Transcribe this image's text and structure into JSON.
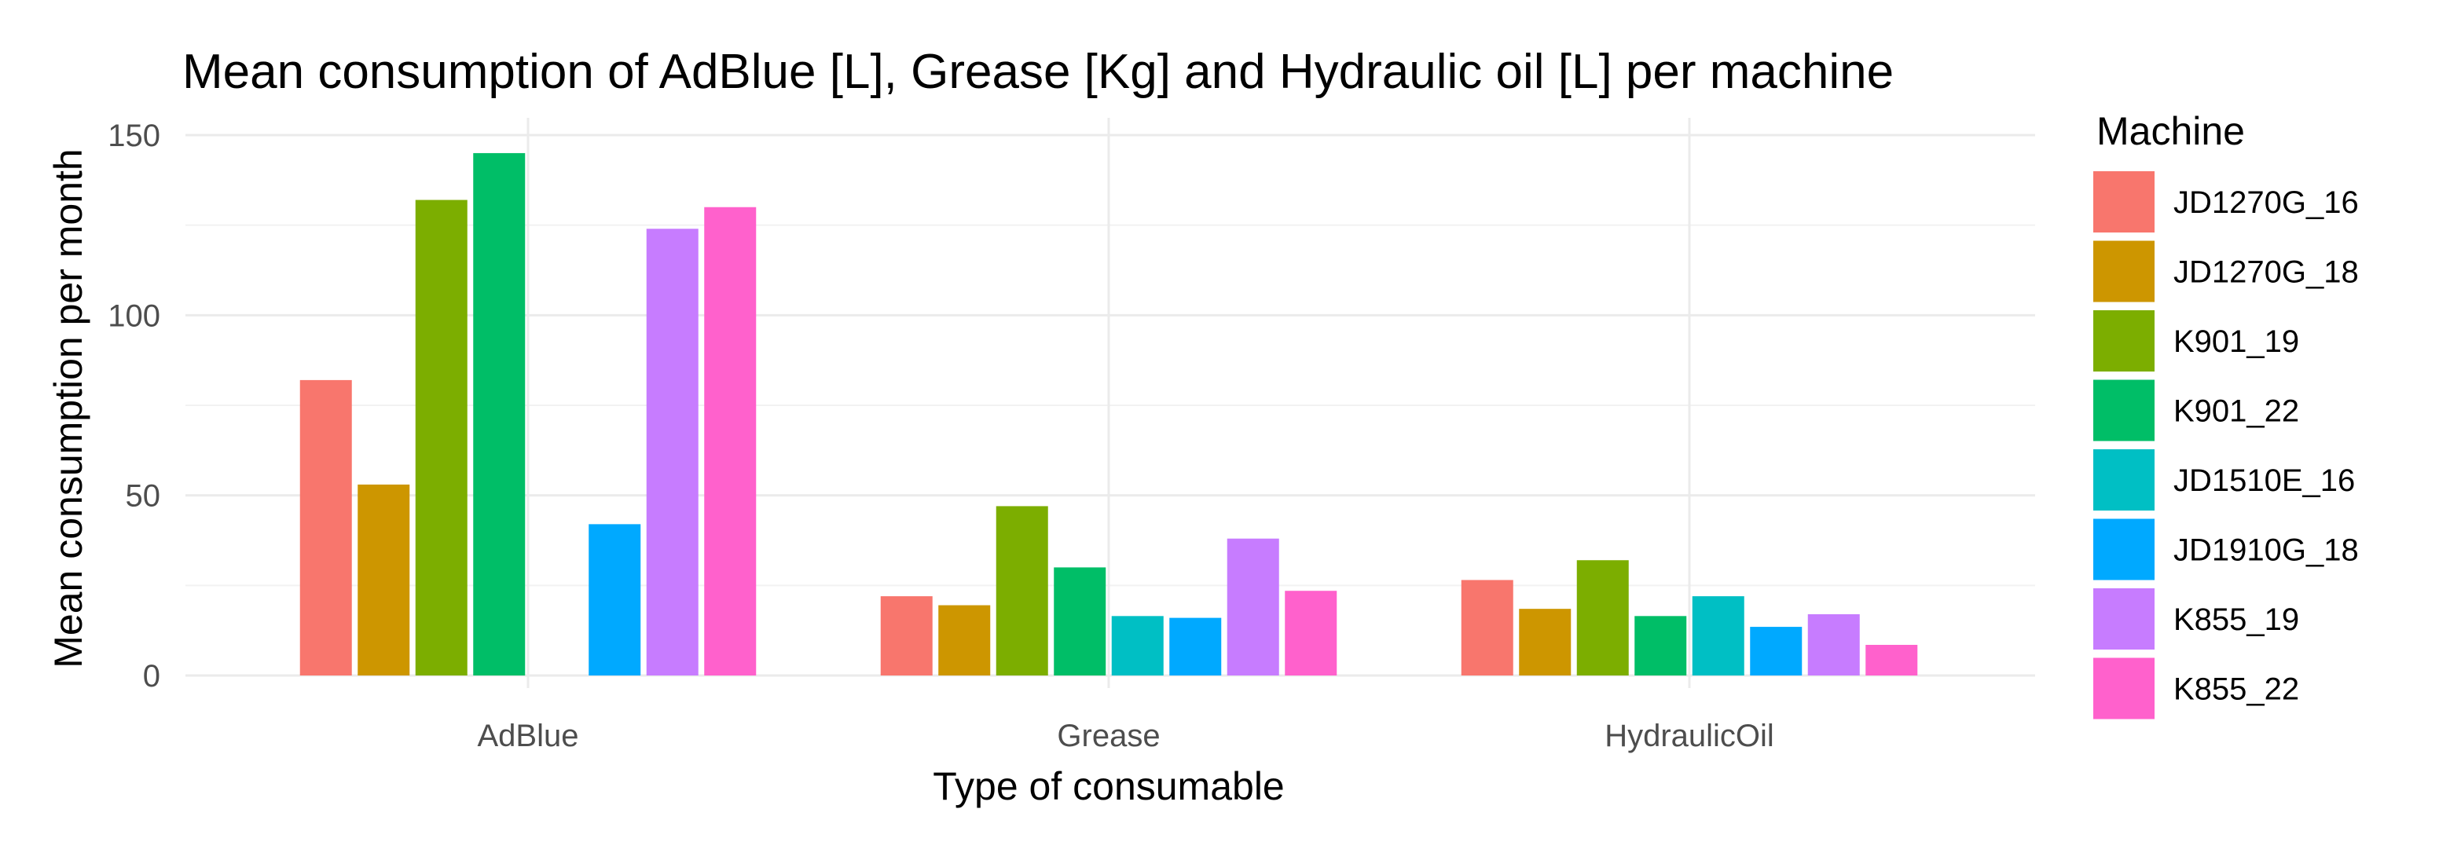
{
  "chart_data": {
    "type": "bar",
    "title": "Mean consumption of AdBlue [L], Grease [Kg] and Hydraulic oil [L] per machine",
    "xlabel": "Type of consumable",
    "ylabel": "Mean consumption per month",
    "categories": [
      "AdBlue",
      "Grease",
      "HydraulicOil"
    ],
    "ylim": [
      0,
      150
    ],
    "yticks": [
      0,
      50,
      100,
      150
    ],
    "grid": true,
    "legend": {
      "title": "Machine",
      "position": "right"
    },
    "series": [
      {
        "name": "JD1270G_16",
        "color": "#F8766D",
        "values": [
          82,
          22,
          26.5
        ]
      },
      {
        "name": "JD1270G_18",
        "color": "#CD9600",
        "values": [
          53,
          19.5,
          18.5
        ]
      },
      {
        "name": "K901_19",
        "color": "#7CAE00",
        "values": [
          132,
          47,
          32
        ]
      },
      {
        "name": "K901_22",
        "color": "#00BE67",
        "values": [
          145,
          30,
          16.5
        ]
      },
      {
        "name": "JD1510E_16",
        "color": "#00BFC4",
        "values": [
          null,
          16.5,
          22
        ]
      },
      {
        "name": "JD1910G_18",
        "color": "#00A9FF",
        "values": [
          42,
          16,
          13.5
        ]
      },
      {
        "name": "K855_19",
        "color": "#C77CFF",
        "values": [
          124,
          38,
          17
        ]
      },
      {
        "name": "K855_22",
        "color": "#FF61CC",
        "values": [
          130,
          23.5,
          8.5
        ]
      }
    ]
  }
}
